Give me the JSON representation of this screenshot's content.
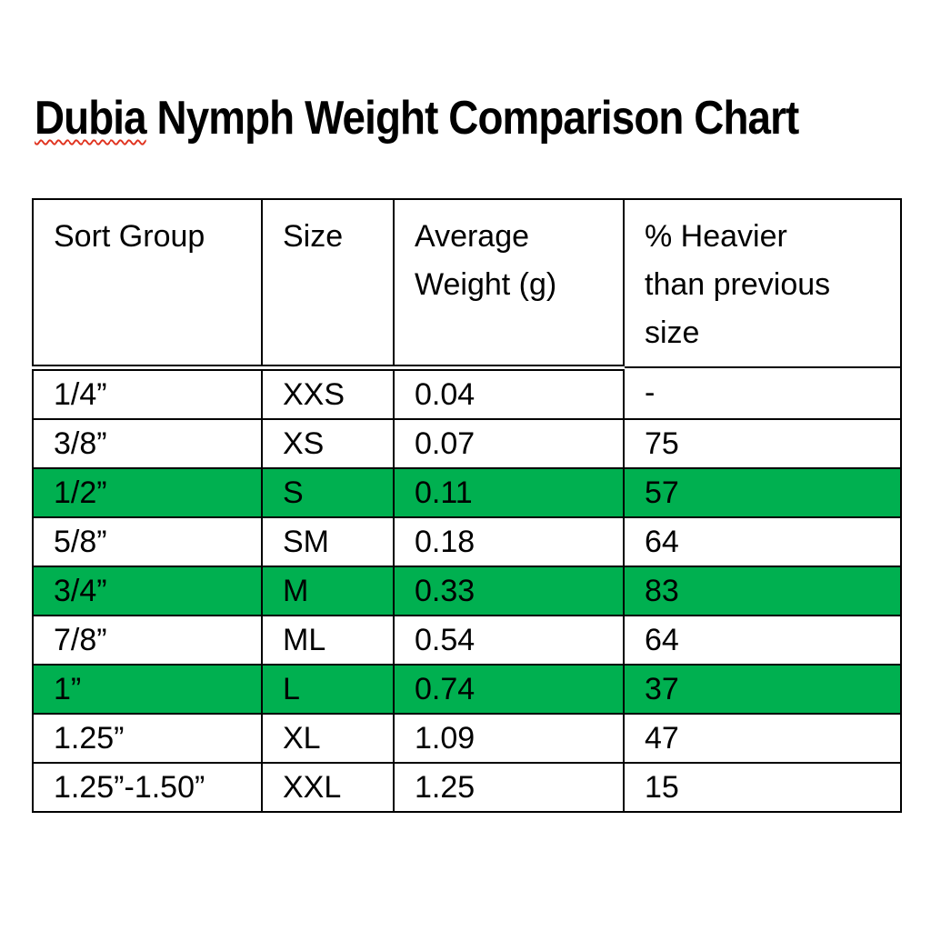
{
  "title": {
    "misspelled_word": "Dubia",
    "rest": " Nymph Weight Comparison Chart",
    "squiggle_color": "#e0321e"
  },
  "table": {
    "highlight_color": "#00b050",
    "border_color": "#000000",
    "headers": [
      "Sort Group",
      "Size",
      "Average Weight (g)",
      "% Heavier than previous size"
    ],
    "header_lines": [
      [
        "Sort Group"
      ],
      [
        "Size"
      ],
      [
        "Average",
        "Weight (g)"
      ],
      [
        "% Heavier",
        "than previous",
        "size"
      ]
    ],
    "rows": [
      {
        "sort_group": "1/4”",
        "size": "XXS",
        "avg_weight": "0.04",
        "pct_heavier": "-",
        "highlight": false
      },
      {
        "sort_group": "3/8”",
        "size": "XS",
        "avg_weight": "0.07",
        "pct_heavier": "75",
        "highlight": false
      },
      {
        "sort_group": "1/2”",
        "size": "S",
        "avg_weight": "0.11",
        "pct_heavier": "57",
        "highlight": true
      },
      {
        "sort_group": "5/8”",
        "size": "SM",
        "avg_weight": "0.18",
        "pct_heavier": "64",
        "highlight": false
      },
      {
        "sort_group": "3/4”",
        "size": "M",
        "avg_weight": "0.33",
        "pct_heavier": "83",
        "highlight": true
      },
      {
        "sort_group": "7/8”",
        "size": "ML",
        "avg_weight": "0.54",
        "pct_heavier": "64",
        "highlight": false
      },
      {
        "sort_group": "1”",
        "size": "L",
        "avg_weight": "0.74",
        "pct_heavier": "37",
        "highlight": true
      },
      {
        "sort_group": "1.25”",
        "size": "XL",
        "avg_weight": "1.09",
        "pct_heavier": "47",
        "highlight": false
      },
      {
        "sort_group": "1.25”-1.50”",
        "size": "XXL",
        "avg_weight": "1.25",
        "pct_heavier": "15",
        "highlight": false
      }
    ]
  }
}
